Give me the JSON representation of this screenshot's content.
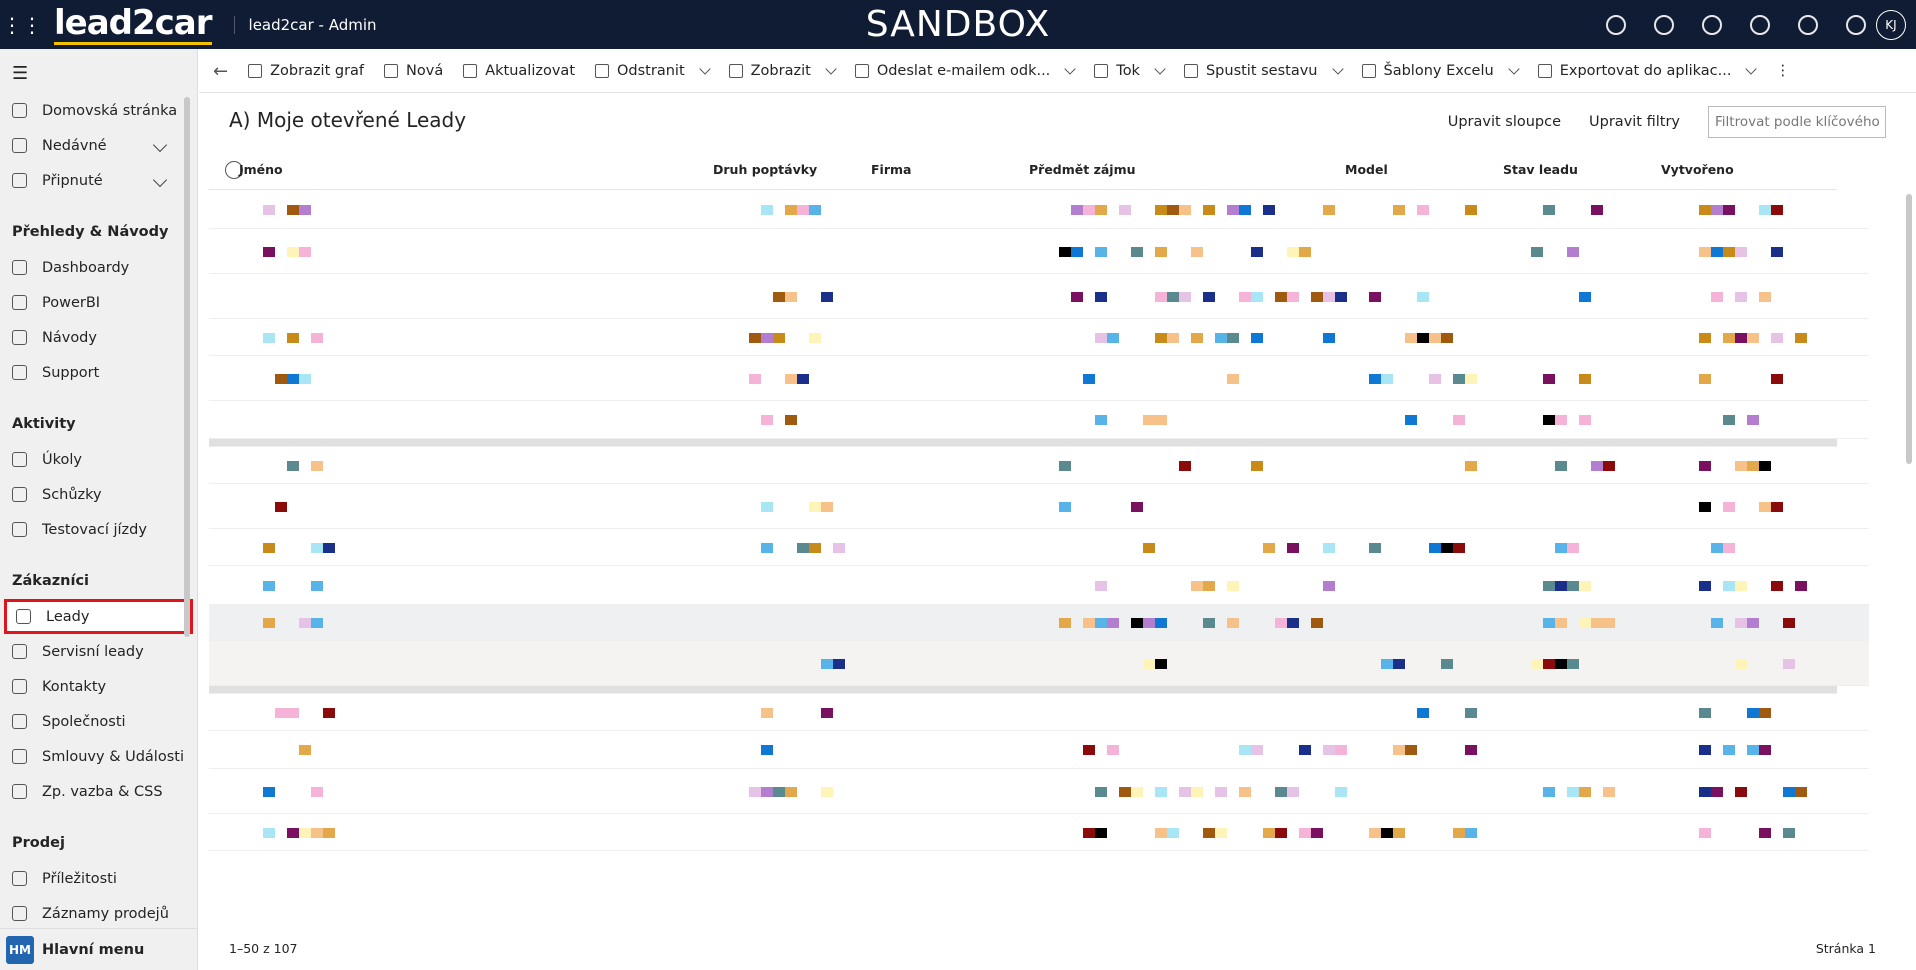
{
  "header": {
    "brand": "lead2car",
    "app_title": "lead2car - Admin",
    "environment": "SANDBOX",
    "user_initials": "KJ"
  },
  "sidebar": {
    "top_items": [
      "Domovská stránka",
      "Nedávné",
      "Připnuté"
    ],
    "groups": [
      {
        "title": "Přehledy & Návody",
        "items": [
          "Dashboardy",
          "PowerBI",
          "Návody",
          "Support"
        ]
      },
      {
        "title": "Aktivity",
        "items": [
          "Úkoly",
          "Schůzky",
          "Testovací jízdy"
        ]
      },
      {
        "title": "Zákazníci",
        "items": [
          "Leady",
          "Servisní leady",
          "Kontakty",
          "Společnosti",
          "Smlouvy & Události",
          "Zp. vazba & CSS"
        ]
      },
      {
        "title": "Prodej",
        "items": [
          "Příležitosti",
          "Záznamy prodejů"
        ]
      }
    ],
    "area": {
      "badge": "HM",
      "label": "Hlavní menu"
    }
  },
  "command_bar": [
    "Zobrazit graf",
    "Nová",
    "Aktualizovat",
    "Odstranit",
    "Zobrazit",
    "Odeslat e-mailem odk...",
    "Tok",
    "Spustit sestavu",
    "Šablony Excelu",
    "Exportovat do aplikac..."
  ],
  "view": {
    "title": "A) Moje otevřené Leady",
    "actions": [
      "Upravit sloupce",
      "Upravit filtry"
    ],
    "search_placeholder": "Filtrovat podle klíčového slo"
  },
  "grid": {
    "columns": [
      "Jméno",
      "Druh poptávky",
      "Firma",
      "Předmět zájmu",
      "Model",
      "Stav leadu",
      "Vytvořeno"
    ]
  },
  "footer": {
    "record_count": "1–50 z 107",
    "page": "Stránka 1"
  }
}
